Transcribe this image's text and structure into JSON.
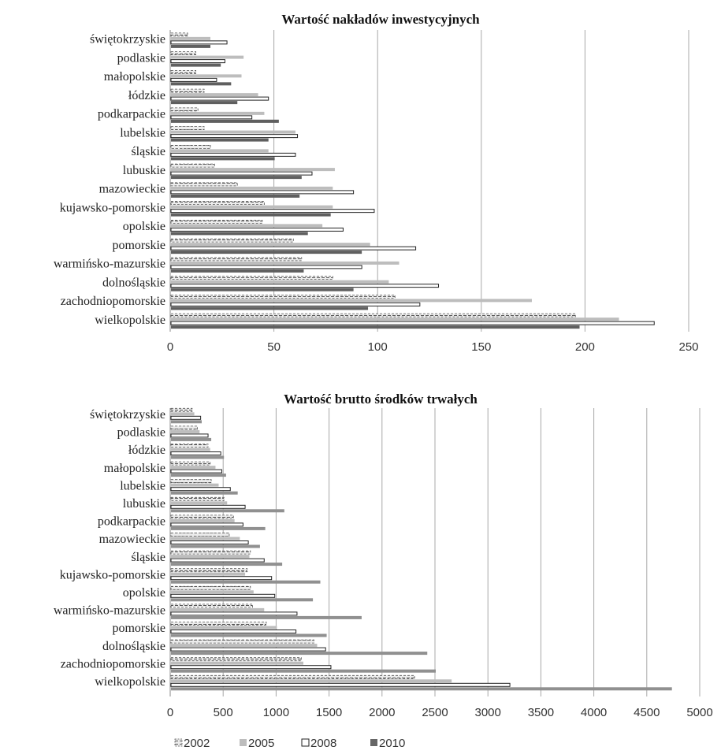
{
  "chart_data": [
    {
      "type": "bar",
      "orientation": "horizontal",
      "title": "Wartość nakładów inwestycyjnych",
      "categories": [
        "świętokrzyskie",
        "podlaskie",
        "małopolskie",
        "łódzkie",
        "podkarpackie",
        "lubelskie",
        "śląskie",
        "lubuskie",
        "mazowieckie",
        "kujawsko-pomorskie",
        "opolskie",
        "pomorskie",
        "warmińsko-mazurskie",
        "dolnośląskie",
        "zachodniopomorskie",
        "wielkopolskie"
      ],
      "xlim": [
        0,
        250
      ],
      "ticks": [
        0,
        50,
        100,
        150,
        200,
        250
      ],
      "tick_labels": [
        "0",
        "50",
        "100",
        "150",
        "200",
        "250"
      ],
      "grid": "vertical",
      "series": [
        {
          "name": "2002",
          "values": [
            8,
            12,
            12,
            16,
            13,
            16,
            19,
            21,
            32,
            45,
            44,
            59,
            63,
            78,
            108,
            195
          ]
        },
        {
          "name": "2005",
          "values": [
            19,
            35,
            34,
            42,
            45,
            60,
            47,
            79,
            78,
            78,
            73,
            96,
            110,
            105,
            174,
            216
          ]
        },
        {
          "name": "2008",
          "values": [
            27,
            26,
            22,
            47,
            39,
            61,
            60,
            68,
            88,
            98,
            83,
            118,
            92,
            129,
            120,
            233
          ]
        },
        {
          "name": "2010",
          "values": [
            19,
            24,
            29,
            32,
            52,
            47,
            50,
            63,
            62,
            77,
            66,
            92,
            64,
            88,
            95,
            197
          ]
        }
      ]
    },
    {
      "type": "bar",
      "orientation": "horizontal",
      "title": "Wartość brutto środków trwałych",
      "categories": [
        "świętokrzyskie",
        "podlaskie",
        "łódzkie",
        "małopolskie",
        "lubelskie",
        "lubuskie",
        "podkarpackie",
        "mazowieckie",
        "śląskie",
        "kujawsko-pomorskie",
        "opolskie",
        "warmińsko-mazurskie",
        "pomorskie",
        "dolnośląskie",
        "zachodniopomorskie",
        "wielkopolskie"
      ],
      "xlim": [
        0,
        5000
      ],
      "ticks": [
        0,
        500,
        1000,
        1500,
        2000,
        2500,
        3000,
        3500,
        4000,
        4500,
        5000
      ],
      "tick_labels": [
        "0",
        "500",
        "1000",
        "1500",
        "2000",
        "2500",
        "3000",
        "3500",
        "4000",
        "4500",
        "5000"
      ],
      "grid": "vertical",
      "series": [
        {
          "name": "2002",
          "values": [
            200,
            250,
            350,
            370,
            380,
            500,
            590,
            550,
            750,
            720,
            750,
            770,
            900,
            1350,
            1230,
            2300
          ]
        },
        {
          "name": "2005",
          "values": [
            220,
            270,
            370,
            420,
            450,
            530,
            600,
            650,
            740,
            700,
            780,
            880,
            1000,
            1380,
            1250,
            2650
          ]
        },
        {
          "name": "2008",
          "values": [
            280,
            350,
            470,
            480,
            560,
            700,
            680,
            730,
            880,
            950,
            980,
            1190,
            1180,
            1460,
            1510,
            3200
          ]
        },
        {
          "name": "2010",
          "values": [
            290,
            380,
            500,
            520,
            630,
            1070,
            890,
            840,
            1050,
            1410,
            1340,
            1800,
            1470,
            2420,
            2500,
            4730
          ]
        }
      ]
    }
  ],
  "legend": {
    "position": "bottom-left",
    "items": [
      {
        "label": "2002",
        "style": "dashed"
      },
      {
        "label": "2005",
        "style": "light-gray"
      },
      {
        "label": "2008",
        "style": "white-outline"
      },
      {
        "label": "2010",
        "style": "dark-gray"
      }
    ]
  },
  "colors": {
    "grid": "#a8a8a8",
    "bar_2002_fill": "#e4e4e4",
    "bar_2002_stroke": "#555555",
    "bar_2005": "#bdbdbd",
    "bar_2008_fill": "#ffffff",
    "bar_2008_stroke": "#222222",
    "bar_2010": "#5f5f5f",
    "bar_2010_chart2": "#909090"
  }
}
